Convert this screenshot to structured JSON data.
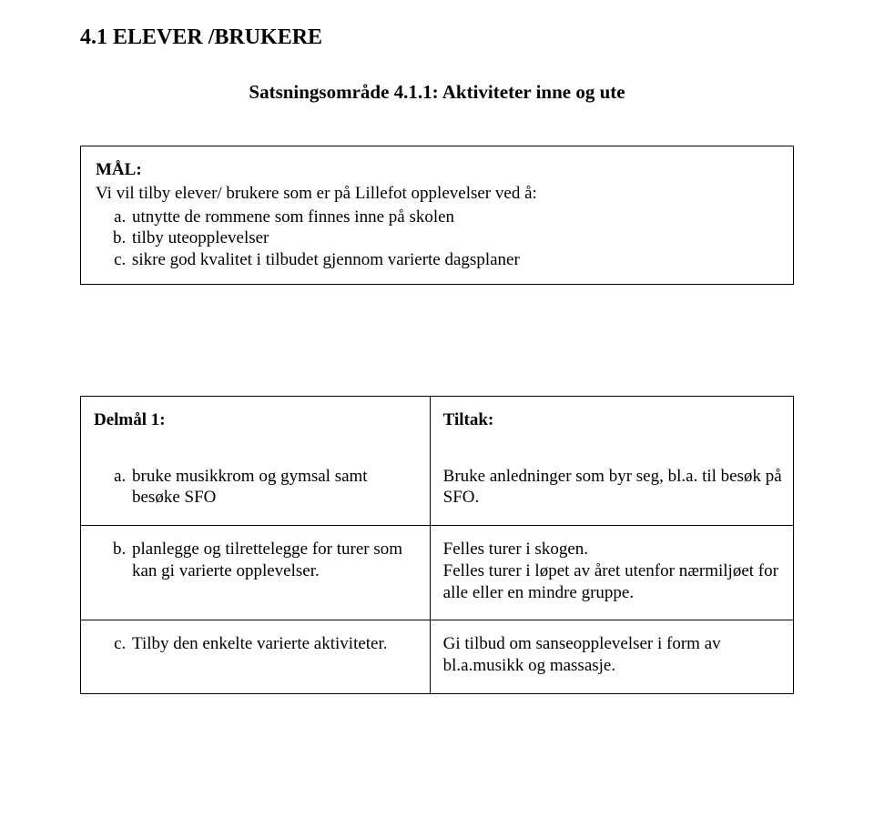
{
  "title": "4.1 ELEVER /BRUKERE",
  "subtitle": "Satsningsområde 4.1.1:  Aktiviteter inne og ute",
  "mal": {
    "label": "MÅL:",
    "intro": "Vi vil tilby elever/ brukere som er på Lillefot opplevelser ved å:",
    "items": [
      "utnytte de rommene som finnes inne på skolen",
      "tilby uteopplevelser",
      "sikre god kvalitet i tilbudet gjennom varierte dagsplaner"
    ]
  },
  "table": {
    "left_header": "Delmål 1:",
    "right_header": "Tiltak:",
    "rows": [
      {
        "left": "bruke musikkrom og gymsal samt besøke SFO",
        "right": "Bruke anledninger som byr seg, bl.a. til besøk på SFO."
      },
      {
        "left": "planlegge og tilrettelegge for turer som kan gi varierte opplevelser.",
        "right": "Felles turer i skogen.\nFelles turer i løpet av året utenfor nærmiljøet for alle eller en mindre gruppe."
      },
      {
        "left": "Tilby den enkelte varierte aktiviteter.",
        "right": "Gi tilbud om sanseopplevelser i form av bl.a.musikk og massasje."
      }
    ]
  }
}
